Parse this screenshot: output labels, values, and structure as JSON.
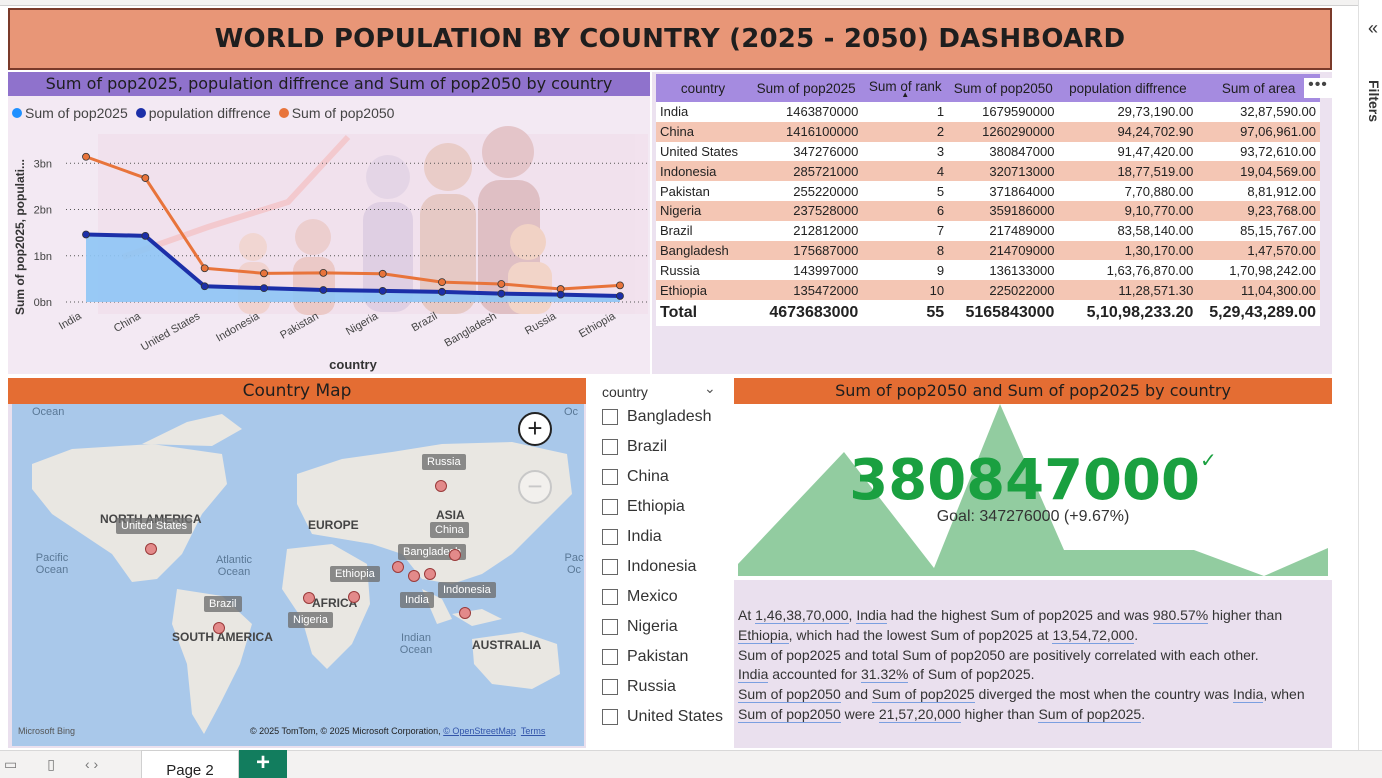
{
  "title": "WORLD POPULATION BY COUNTRY (2025 - 2050) DASHBOARD",
  "line_chart": {
    "title": "Sum of pop2025, population diffrence and Sum of pop2050 by country",
    "legend": [
      "Sum of pop2025",
      "population diffrence",
      "Sum of pop2050"
    ],
    "colors": [
      "#1e90ff",
      "#1c2fa8",
      "#e8743b"
    ],
    "xlabel": "country",
    "ylabel": "Sum of pop2025, populati...",
    "y_ticks": [
      "0bn",
      "1bn",
      "2bn",
      "3bn"
    ]
  },
  "chart_data": {
    "type": "line",
    "categories": [
      "India",
      "China",
      "United States",
      "Indonesia",
      "Pakistan",
      "Nigeria",
      "Brazil",
      "Bangladesh",
      "Russia",
      "Ethiopia"
    ],
    "series": [
      {
        "name": "Sum of pop2025",
        "values": [
          1.464,
          1.416,
          0.347,
          0.286,
          0.255,
          0.238,
          0.213,
          0.176,
          0.144,
          0.135
        ]
      },
      {
        "name": "population diffrence",
        "values": [
          1.46,
          1.43,
          0.34,
          0.3,
          0.26,
          0.24,
          0.22,
          0.18,
          0.16,
          0.13
        ]
      },
      {
        "name": "Sum of pop2050",
        "values": [
          3.14,
          2.68,
          0.73,
          0.62,
          0.63,
          0.61,
          0.43,
          0.39,
          0.28,
          0.36
        ]
      }
    ],
    "ylim": [
      0,
      3.2
    ],
    "xlabel": "country",
    "ylabel": "Sum of pop2025, populati..."
  },
  "table": {
    "headers": [
      "country",
      "Sum of pop2025",
      "Sum of rank",
      "Sum of pop2050",
      "population diffrence",
      "Sum of area"
    ],
    "rows": [
      [
        "India",
        "1463870000",
        "1",
        "1679590000",
        "29,73,190.00",
        "32,87,590.00"
      ],
      [
        "China",
        "1416100000",
        "2",
        "1260290000",
        "94,24,702.90",
        "97,06,961.00"
      ],
      [
        "United States",
        "347276000",
        "3",
        "380847000",
        "91,47,420.00",
        "93,72,610.00"
      ],
      [
        "Indonesia",
        "285721000",
        "4",
        "320713000",
        "18,77,519.00",
        "19,04,569.00"
      ],
      [
        "Pakistan",
        "255220000",
        "5",
        "371864000",
        "7,70,880.00",
        "8,81,912.00"
      ],
      [
        "Nigeria",
        "237528000",
        "6",
        "359186000",
        "9,10,770.00",
        "9,23,768.00"
      ],
      [
        "Brazil",
        "212812000",
        "7",
        "217489000",
        "83,58,140.00",
        "85,15,767.00"
      ],
      [
        "Bangladesh",
        "175687000",
        "8",
        "214709000",
        "1,30,170.00",
        "1,47,570.00"
      ],
      [
        "Russia",
        "143997000",
        "9",
        "136133000",
        "1,63,76,870.00",
        "1,70,98,242.00"
      ],
      [
        "Ethiopia",
        "135472000",
        "10",
        "225022000",
        "11,28,571.30",
        "11,04,300.00"
      ]
    ],
    "total": [
      "Total",
      "4673683000",
      "55",
      "5165843000",
      "5,10,98,233.20",
      "5,29,43,289.00"
    ],
    "more_label": "•••"
  },
  "map": {
    "title": "Country Map",
    "continents": [
      "NORTH AMERICA",
      "EUROPE",
      "ASIA",
      "AFRICA",
      "SOUTH AMERICA",
      "AUSTRALIA"
    ],
    "oceans": [
      "Ocean",
      "Oc",
      "Pacific Ocean",
      "Atlantic Ocean",
      "Pac Oc",
      "Indian Ocean"
    ],
    "tags": [
      "United States",
      "Russia",
      "China",
      "Bangladesh",
      "Ethiopia",
      "Indonesia",
      "India",
      "Brazil",
      "Nigeria"
    ],
    "zoom_in": "+",
    "zoom_out": "−",
    "credit": "© 2025 TomTom, © 2025 Microsoft Corporation,",
    "credit_osm": "© OpenStreetMap",
    "credit_terms": "Terms",
    "bing": "Microsoft Bing"
  },
  "slicer": {
    "header": "country",
    "chevron": "⌄",
    "items": [
      "Bangladesh",
      "Brazil",
      "China",
      "Ethiopia",
      "India",
      "Indonesia",
      "Mexico",
      "Nigeria",
      "Pakistan",
      "Russia",
      "United States"
    ]
  },
  "kpi": {
    "title": "Sum of pop2050 and Sum of pop2025 by country",
    "value": "380847000",
    "check": "✓",
    "goal": "Goal: 347276000 (+9.67%)",
    "trend_color": "#8cc99b",
    "value_color": "#1aa040"
  },
  "narrative": {
    "s1_a": "At ",
    "s1_v1": "1,46,38,70,000",
    "s1_b": ", ",
    "s1_v2": "India",
    "s1_c": " had the highest Sum of pop2025 and was ",
    "s1_v3": "980.57%",
    "s1_d": " higher than",
    "s1_v4": "Ethiopia",
    "s1_e": ", which had the lowest Sum of pop2025 at ",
    "s1_v5": "13,54,72,000",
    "s1_f": ".",
    "s2": "Sum of pop2025 and total Sum of pop2050 are positively correlated with each other.",
    "s3_v1": "India",
    "s3_a": " accounted for ",
    "s3_v2": "31.32%",
    "s3_b": " of Sum of pop2025.",
    "s4_v1": "Sum of pop2050",
    "s4_a": " and ",
    "s4_v2": "Sum of pop2025",
    "s4_b": " diverged the most when the country was ",
    "s4_v3": "India",
    "s4_c": ", when",
    "s4_v4": "Sum of pop2050",
    "s4_d": " were ",
    "s4_v5": "21,57,20,000",
    "s4_e": " higher than ",
    "s4_v6": "Sum of pop2025",
    "s4_f": "."
  },
  "filters": {
    "label": "Filters",
    "collapse": "«"
  },
  "tabs": {
    "page": "Page 2",
    "add": "+"
  }
}
